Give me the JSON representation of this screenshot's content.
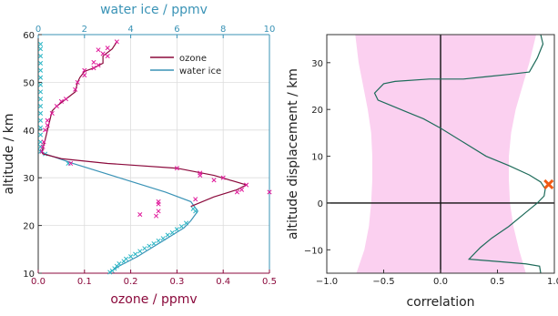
{
  "colors": {
    "ozone": "#8b0a3c",
    "ozone_marker": "#e0189a",
    "water": "#3a93b6",
    "water_marker": "#28b4c4",
    "corr_line": "#1e6b5a",
    "band": "#fbd0f0",
    "peak_marker": "#f05a14"
  },
  "chart_data": [
    {
      "type": "line",
      "xlabel": "ozone / ppmv",
      "x2label": "water ice / ppmv",
      "ylabel": "altitude / km",
      "xlim": [
        0,
        0.5
      ],
      "x2lim": [
        0,
        10
      ],
      "ylim": [
        10,
        60
      ],
      "xticks": [
        "0.0",
        "0.1",
        "0.2",
        "0.3",
        "0.4",
        "0.5"
      ],
      "x2ticks": [
        "0",
        "2",
        "4",
        "6",
        "8",
        "10"
      ],
      "yticks": [
        "10",
        "20",
        "30",
        "40",
        "50",
        "60"
      ],
      "grid": true,
      "legend": {
        "placement": "top-right",
        "entries": [
          "ozone",
          "water ice"
        ]
      },
      "series": [
        {
          "name": "ozone",
          "axis": "bottom",
          "line": [
            [
              0.17,
              58.5
            ],
            [
              0.16,
              57
            ],
            [
              0.14,
              55.5
            ],
            [
              0.14,
              54
            ],
            [
              0.12,
              53
            ],
            [
              0.1,
              52.3
            ],
            [
              0.09,
              51
            ],
            [
              0.085,
              50
            ],
            [
              0.08,
              48
            ],
            [
              0.06,
              46.5
            ],
            [
              0.04,
              45
            ],
            [
              0.03,
              44
            ],
            [
              0.025,
              42
            ],
            [
              0.02,
              40
            ],
            [
              0.015,
              38
            ],
            [
              0.012,
              37
            ],
            [
              0.01,
              36
            ],
            [
              0.008,
              35.5
            ],
            [
              0.01,
              35
            ],
            [
              0.05,
              34
            ],
            [
              0.15,
              33
            ],
            [
              0.3,
              32
            ],
            [
              0.38,
              30.5
            ],
            [
              0.45,
              28.5
            ],
            [
              0.43,
              27.5
            ],
            [
              0.38,
              26
            ],
            [
              0.33,
              24
            ]
          ],
          "markers": [
            [
              0.17,
              58.5
            ],
            [
              0.15,
              57.2
            ],
            [
              0.13,
              56.8
            ],
            [
              0.14,
              56
            ],
            [
              0.15,
              55.5
            ],
            [
              0.12,
              54.2
            ],
            [
              0.13,
              53.6
            ],
            [
              0.12,
              53
            ],
            [
              0.1,
              52.5
            ],
            [
              0.1,
              51.5
            ],
            [
              0.085,
              50
            ],
            [
              0.08,
              48.5
            ],
            [
              0.06,
              46.5
            ],
            [
              0.05,
              46
            ],
            [
              0.04,
              45
            ],
            [
              0.03,
              43.5
            ],
            [
              0.02,
              42
            ],
            [
              0.02,
              41
            ],
            [
              0.015,
              40
            ],
            [
              0.012,
              37.5
            ],
            [
              0.01,
              36.5
            ],
            [
              0.008,
              35.5
            ],
            [
              0.07,
              33
            ],
            [
              0.3,
              32
            ],
            [
              0.35,
              31
            ],
            [
              0.35,
              30.5
            ],
            [
              0.4,
              30
            ],
            [
              0.38,
              29.5
            ],
            [
              0.45,
              28.5
            ],
            [
              0.44,
              27.5
            ],
            [
              0.43,
              27
            ],
            [
              0.5,
              27
            ],
            [
              0.34,
              25.5
            ],
            [
              0.26,
              25
            ],
            [
              0.26,
              24.5
            ],
            [
              0.26,
              23
            ],
            [
              0.22,
              22.3
            ],
            [
              0.255,
              22
            ]
          ]
        },
        {
          "name": "water ice",
          "axis": "top",
          "line": [
            [
              0.1,
              36
            ],
            [
              0.1,
              35.5
            ],
            [
              0.3,
              35
            ],
            [
              1.5,
              33
            ],
            [
              3.5,
              30
            ],
            [
              5.5,
              27
            ],
            [
              6.6,
              25
            ],
            [
              6.9,
              23
            ],
            [
              6.6,
              21
            ],
            [
              6.3,
              19.5
            ],
            [
              5.8,
              18
            ],
            [
              5.3,
              16.5
            ],
            [
              4.8,
              15
            ],
            [
              4.3,
              13.5
            ],
            [
              3.9,
              12.5
            ],
            [
              3.5,
              11.5
            ],
            [
              3.2,
              10.5
            ]
          ],
          "markers": [
            [
              0.1,
              58
            ],
            [
              0.1,
              57
            ],
            [
              0.1,
              55.5
            ],
            [
              0.1,
              54
            ],
            [
              0.1,
              52.5
            ],
            [
              0.1,
              51
            ],
            [
              0.1,
              49.5
            ],
            [
              0.1,
              48
            ],
            [
              0.1,
              46.5
            ],
            [
              0.1,
              45
            ],
            [
              0.1,
              43.5
            ],
            [
              0.1,
              42
            ],
            [
              0.1,
              40.5
            ],
            [
              0.1,
              39
            ],
            [
              0.1,
              37.5
            ],
            [
              0.1,
              36.5
            ],
            [
              0.1,
              35.5
            ],
            [
              0.3,
              35
            ],
            [
              1.3,
              33
            ],
            [
              6.7,
              23.5
            ],
            [
              6.8,
              23
            ],
            [
              6.4,
              20.5
            ],
            [
              6.2,
              19.8
            ],
            [
              6.0,
              19.2
            ],
            [
              5.8,
              18.5
            ],
            [
              5.6,
              18
            ],
            [
              5.4,
              17.3
            ],
            [
              5.2,
              16.8
            ],
            [
              5.0,
              16.2
            ],
            [
              4.8,
              15.7
            ],
            [
              4.6,
              15.2
            ],
            [
              4.4,
              14.6
            ],
            [
              4.2,
              14
            ],
            [
              4.0,
              13.5
            ],
            [
              3.8,
              13
            ],
            [
              3.7,
              12.5
            ],
            [
              3.5,
              12
            ],
            [
              3.4,
              11.5
            ],
            [
              3.3,
              11
            ],
            [
              3.2,
              10.5
            ],
            [
              3.1,
              10.2
            ]
          ]
        }
      ]
    },
    {
      "type": "line",
      "xlabel": "correlation",
      "ylabel": "altitude displacement / km",
      "xlim": [
        -1.0,
        1.0
      ],
      "ylim": [
        -15,
        36
      ],
      "xticks": [
        "−1.0",
        "−0.5",
        "0.0",
        "0.5",
        "1.0"
      ],
      "xtick_values": [
        -1.0,
        -0.5,
        0.0,
        0.5,
        1.0
      ],
      "yticks": [
        "−10",
        "0",
        "10",
        "20",
        "30"
      ],
      "ytick_values": [
        -10,
        0,
        10,
        20,
        30
      ],
      "grid": false,
      "reference_lines": {
        "x": 0,
        "y": 0
      },
      "band_left": [
        [
          -0.75,
          36
        ],
        [
          -0.72,
          30
        ],
        [
          -0.68,
          25
        ],
        [
          -0.64,
          20
        ],
        [
          -0.61,
          15
        ],
        [
          -0.6,
          10
        ],
        [
          -0.6,
          5
        ],
        [
          -0.61,
          0
        ],
        [
          -0.63,
          -5
        ],
        [
          -0.67,
          -10
        ],
        [
          -0.74,
          -15
        ]
      ],
      "band_right": [
        [
          0.84,
          36
        ],
        [
          0.78,
          30
        ],
        [
          0.72,
          25
        ],
        [
          0.66,
          20
        ],
        [
          0.62,
          15
        ],
        [
          0.6,
          10
        ],
        [
          0.6,
          5
        ],
        [
          0.61,
          0
        ],
        [
          0.64,
          -5
        ],
        [
          0.69,
          -10
        ],
        [
          0.75,
          -15
        ]
      ],
      "series": [
        {
          "line": [
            [
              0.88,
              36
            ],
            [
              0.9,
              34
            ],
            [
              0.85,
              31
            ],
            [
              0.78,
              28
            ],
            [
              0.6,
              27.5
            ],
            [
              0.4,
              27
            ],
            [
              0.2,
              26.5
            ],
            [
              -0.1,
              26.5
            ],
            [
              -0.4,
              26
            ],
            [
              -0.5,
              25.5
            ],
            [
              -0.58,
              23.5
            ],
            [
              -0.55,
              22
            ],
            [
              -0.45,
              21
            ],
            [
              -0.3,
              19.5
            ],
            [
              -0.15,
              18
            ],
            [
              0.0,
              16
            ],
            [
              0.2,
              13
            ],
            [
              0.4,
              10
            ],
            [
              0.6,
              8
            ],
            [
              0.78,
              6
            ],
            [
              0.88,
              4.5
            ],
            [
              0.92,
              3
            ],
            [
              0.91,
              1.5
            ],
            [
              0.85,
              0
            ],
            [
              0.75,
              -2
            ],
            [
              0.6,
              -5
            ],
            [
              0.45,
              -7.5
            ],
            [
              0.35,
              -9.5
            ],
            [
              0.25,
              -12
            ],
            [
              0.5,
              -12.5
            ],
            [
              0.75,
              -13
            ],
            [
              0.87,
              -13.5
            ],
            [
              0.88,
              -15
            ]
          ],
          "peak_marker": [
            0.95,
            4
          ]
        }
      ]
    }
  ]
}
